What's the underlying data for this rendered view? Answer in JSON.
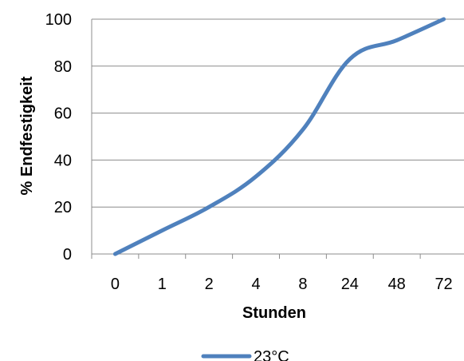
{
  "chart_data": {
    "type": "line",
    "categories": [
      "0",
      "1",
      "2",
      "4",
      "8",
      "24",
      "48",
      "72"
    ],
    "series": [
      {
        "name": "23°C",
        "values": [
          0,
          10,
          20,
          33,
          53,
          83,
          91,
          100
        ],
        "color": "#4f81bd"
      }
    ],
    "xlabel": "Stunden",
    "ylabel": "% Endfestigkeit",
    "ylim": [
      0,
      100
    ],
    "yticks": [
      0,
      20,
      40,
      60,
      80,
      100
    ],
    "grid": true,
    "legend": "bottom"
  }
}
